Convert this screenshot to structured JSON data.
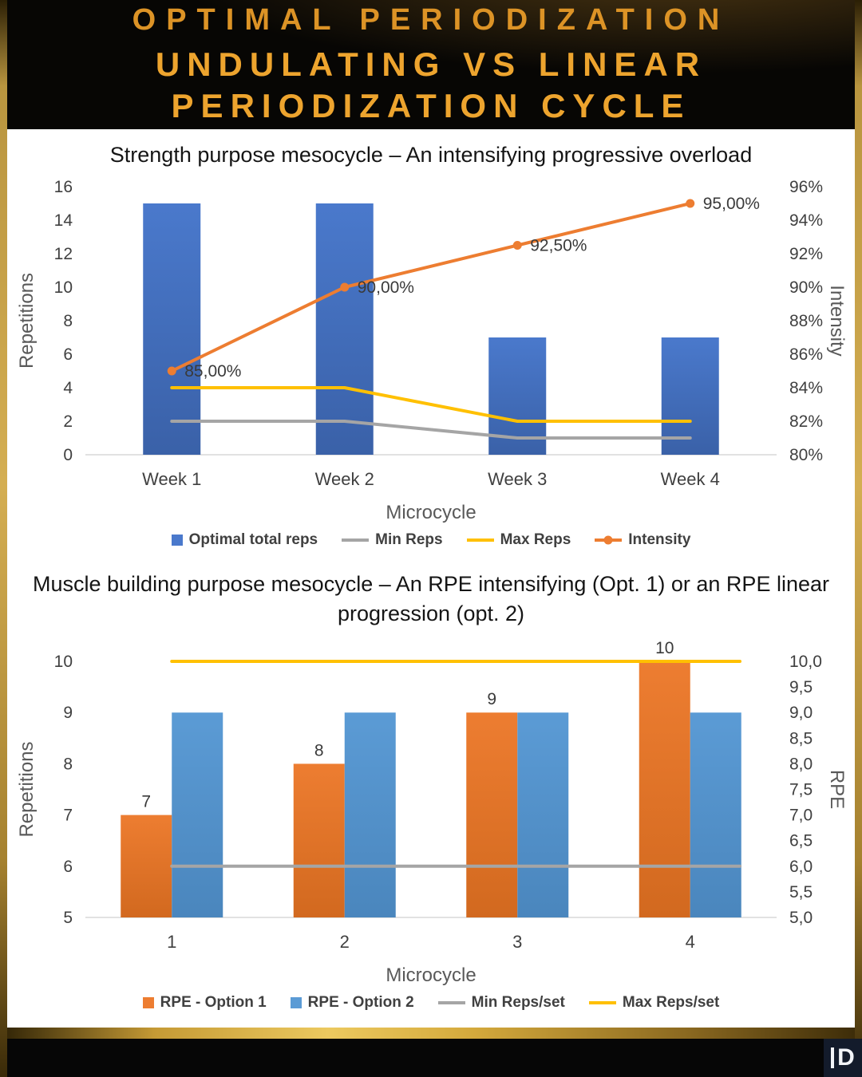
{
  "header": {
    "title_line1": "OPTIMAL PERIODIZATION",
    "title_line2": "UNDULATING VS LINEAR PERIODIZATION CYCLE"
  },
  "footer": {
    "logo_text": "D"
  },
  "chart_data": [
    {
      "type": "bar",
      "title": "Strength purpose mesocycle – An intensifying progressive overload",
      "xlabel": "Microcycle",
      "ylabel_left": "Repetitions",
      "ylabel_right": "Intensity",
      "categories": [
        "Week 1",
        "Week 2",
        "Week 3",
        "Week 4"
      ],
      "ylim_left": [
        0,
        16
      ],
      "ylim_right": [
        80,
        96
      ],
      "legend_position": "bottom",
      "grid": false,
      "yticks_left": [
        {
          "v": 0,
          "label": "0"
        },
        {
          "v": 2,
          "label": "2"
        },
        {
          "v": 4,
          "label": "4"
        },
        {
          "v": 6,
          "label": "6"
        },
        {
          "v": 8,
          "label": "8"
        },
        {
          "v": 10,
          "label": "10"
        },
        {
          "v": 12,
          "label": "12"
        },
        {
          "v": 14,
          "label": "14"
        },
        {
          "v": 16,
          "label": "16"
        }
      ],
      "yticks_right": [
        {
          "v": 80,
          "label": "80%"
        },
        {
          "v": 82,
          "label": "82%"
        },
        {
          "v": 84,
          "label": "84%"
        },
        {
          "v": 86,
          "label": "86%"
        },
        {
          "v": 88,
          "label": "88%"
        },
        {
          "v": 90,
          "label": "90%"
        },
        {
          "v": 92,
          "label": "92%"
        },
        {
          "v": 94,
          "label": "94%"
        },
        {
          "v": 96,
          "label": "96%"
        }
      ],
      "series": [
        {
          "name": "Optimal total reps",
          "type": "bar",
          "axis": "left",
          "color": "#4a79cc",
          "color2": "#3a61a8",
          "values": [
            15,
            15,
            7,
            7
          ]
        },
        {
          "name": "Min Reps",
          "type": "line",
          "axis": "left",
          "color": "#a5a5a5",
          "values": [
            2,
            2,
            1,
            1
          ]
        },
        {
          "name": "Max Reps",
          "type": "line",
          "axis": "left",
          "color": "#ffc000",
          "values": [
            4,
            4,
            2,
            2
          ]
        },
        {
          "name": "Intensity",
          "type": "line",
          "axis": "right",
          "color": "#ed7d31",
          "markers": true,
          "values": [
            85,
            90,
            92.5,
            95
          ],
          "labels": [
            "85,00%",
            "90,00%",
            "92,50%",
            "95,00%"
          ]
        }
      ]
    },
    {
      "type": "bar",
      "title": "Muscle building purpose mesocycle – An RPE intensifying (Opt. 1) or an RPE linear progression (opt. 2)",
      "xlabel": "Microcycle",
      "ylabel_left": "Repetitions",
      "ylabel_right": "RPE",
      "categories": [
        "1",
        "2",
        "3",
        "4"
      ],
      "ylim_left": [
        5,
        10
      ],
      "ylim_right": [
        5,
        10
      ],
      "legend_position": "bottom",
      "grid": false,
      "yticks_left": [
        {
          "v": 5,
          "label": "5"
        },
        {
          "v": 6,
          "label": "6"
        },
        {
          "v": 7,
          "label": "7"
        },
        {
          "v": 8,
          "label": "8"
        },
        {
          "v": 9,
          "label": "9"
        },
        {
          "v": 10,
          "label": "10"
        }
      ],
      "yticks_right": [
        {
          "v": 5,
          "label": "5,0"
        },
        {
          "v": 5.5,
          "label": "5,5"
        },
        {
          "v": 6,
          "label": "6,0"
        },
        {
          "v": 6.5,
          "label": "6,5"
        },
        {
          "v": 7,
          "label": "7,0"
        },
        {
          "v": 7.5,
          "label": "7,5"
        },
        {
          "v": 8,
          "label": "8,0"
        },
        {
          "v": 8.5,
          "label": "8,5"
        },
        {
          "v": 9,
          "label": "9,0"
        },
        {
          "v": 9.5,
          "label": "9,5"
        },
        {
          "v": 10,
          "label": "10,0"
        }
      ],
      "series": [
        {
          "name": "RPE - Option 1",
          "type": "bar",
          "axis": "left",
          "color": "#ed7d31",
          "color2": "#d2691f",
          "values": [
            7,
            8,
            9,
            10
          ],
          "labels": [
            "7",
            "8",
            "9",
            "10"
          ]
        },
        {
          "name": "RPE - Option 2",
          "type": "bar",
          "axis": "left",
          "color": "#5b9bd5",
          "color2": "#4a86bd",
          "values": [
            9,
            9,
            9,
            9
          ]
        },
        {
          "name": "Min Reps/set",
          "type": "line",
          "axis": "left",
          "color": "#a5a5a5",
          "span": "full",
          "values": [
            6,
            6,
            6,
            6
          ]
        },
        {
          "name": "Max Reps/set",
          "type": "line",
          "axis": "left",
          "color": "#ffc000",
          "span": "full",
          "values": [
            10,
            10,
            10,
            10
          ]
        }
      ]
    }
  ]
}
